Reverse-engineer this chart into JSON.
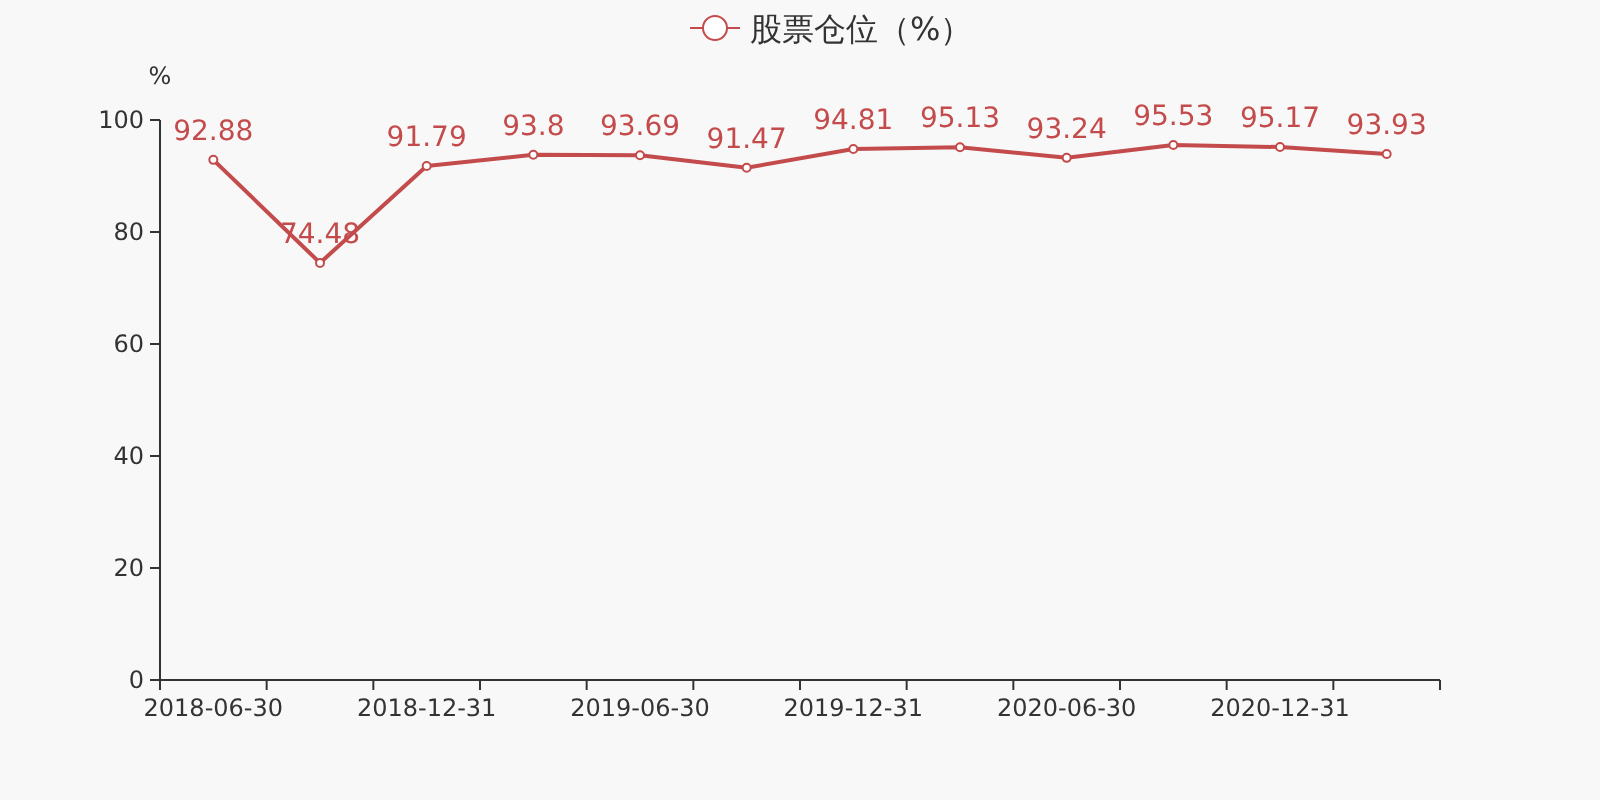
{
  "chart_data": {
    "type": "line",
    "ylabel": "%",
    "categories": [
      "2018-06-30",
      null,
      "2018-12-31",
      null,
      "2019-06-30",
      null,
      "2019-12-31",
      null,
      "2020-06-30",
      null,
      "2020-12-31",
      null
    ],
    "series": [
      {
        "name": "股票仓位（%）",
        "color": "#c44b4b",
        "values": [
          92.88,
          74.48,
          91.79,
          93.8,
          93.69,
          91.47,
          94.81,
          95.13,
          93.24,
          95.53,
          95.17,
          93.93
        ]
      }
    ],
    "ylim": [
      0,
      100
    ],
    "yticks": [
      0,
      20,
      40,
      60,
      80,
      100
    ],
    "data_labels": true,
    "marker": "circle",
    "line_style": "solid",
    "legend": "top",
    "grid": false
  }
}
